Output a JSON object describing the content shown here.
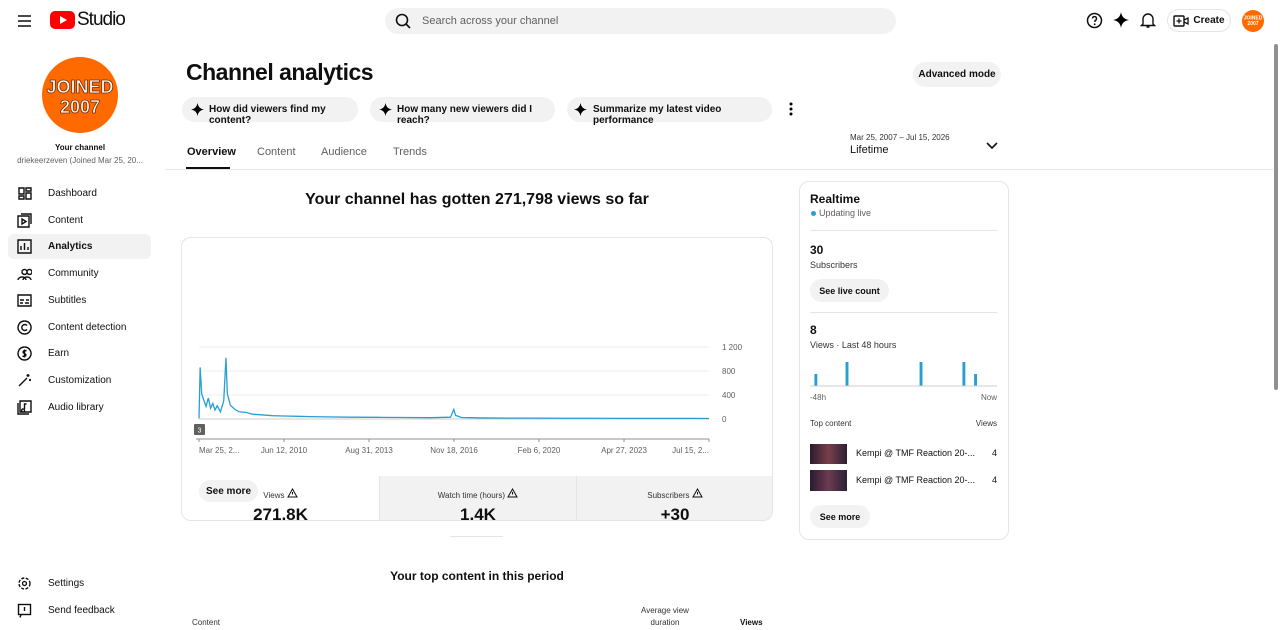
{
  "header": {
    "logo": "Studio",
    "search_placeholder": "Search across your channel",
    "create": "Create",
    "avatar": [
      "JOINED",
      "2007"
    ]
  },
  "sidebar": {
    "avatar": [
      "JOINED",
      "2007"
    ],
    "channel_label": "Your channel",
    "channel_name": "driekeerzeven (Joined Mar 25, 20...",
    "nav": [
      "Dashboard",
      "Content",
      "Analytics",
      "Community",
      "Subtitles",
      "Content detection",
      "Earn",
      "Customization",
      "Audio library"
    ],
    "active": 2,
    "footer": [
      "Settings",
      "Send feedback"
    ]
  },
  "page": {
    "title": "Channel analytics",
    "advanced": "Advanced mode",
    "prompts": [
      "How did viewers find my content?",
      "How many new viewers did I reach?",
      "Summarize my latest video performance"
    ],
    "tabs": [
      "Overview",
      "Content",
      "Audience",
      "Trends"
    ],
    "date_range": "Mar 25, 2007 – Jul 15, 2026",
    "period": "Lifetime"
  },
  "summary": "Your channel has gotten 271,798 views so far",
  "metrics": [
    {
      "label": "Views",
      "value": "271,8K"
    },
    {
      "label": "Watch time (hours)",
      "value": "1,4K"
    },
    {
      "label": "Subscribers",
      "value": "+30"
    }
  ],
  "views_chart": {
    "type": "line",
    "color": "#289ed3",
    "marker": "3",
    "x": [
      "2007-03-25",
      "2007-04-10",
      "2007-05-01",
      "2007-06-01",
      "2007-07-01",
      "2007-08-01",
      "2007-09-01",
      "2007-10-01",
      "2007-11-01",
      "2007-12-01",
      "2008-01-15",
      "2008-03-01",
      "2008-04-01",
      "2008-04-20",
      "2008-06-01",
      "2008-08-01",
      "2008-10-01",
      "2009-01-01",
      "2009-04-01",
      "2009-08-01",
      "2010-01-01",
      "2010-06-01",
      "2011-01-01",
      "2011-06-01",
      "2012-01-01",
      "2013-01-01",
      "2014-01-01",
      "2015-01-01",
      "2016-01-01",
      "2016-10-01",
      "2016-11-15",
      "2016-12-10",
      "2017-03-01",
      "2018-01-01",
      "2019-01-01",
      "2020-01-01",
      "2021-01-01",
      "2022-01-01",
      "2023-01-01",
      "2024-01-01",
      "2025-01-01",
      "2026-01-01",
      "2026-07-15"
    ],
    "values": [
      10,
      860,
      420,
      310,
      210,
      350,
      180,
      260,
      150,
      220,
      120,
      300,
      1020,
      420,
      230,
      160,
      120,
      110,
      80,
      70,
      55,
      50,
      45,
      40,
      35,
      30,
      28,
      25,
      22,
      30,
      160,
      60,
      25,
      18,
      15,
      14,
      12,
      12,
      10,
      10,
      10,
      10,
      8
    ],
    "xlim": [
      "2007-03-25",
      "2026-07-15"
    ],
    "xticks": [
      {
        "value": "2007-03-25",
        "label": "Mar 25, 2..."
      },
      {
        "value": "2010-06-12",
        "label": "Jun 12, 2010"
      },
      {
        "value": "2013-08-31",
        "label": "Aug 31, 2013"
      },
      {
        "value": "2016-11-18",
        "label": "Nov 18, 2016"
      },
      {
        "value": "2020-02-06",
        "label": "Feb 6, 2020"
      },
      {
        "value": "2023-04-27",
        "label": "Apr 27, 2023"
      },
      {
        "value": "2026-07-15",
        "label": "Jul 15, 2..."
      }
    ],
    "ylim": [
      0,
      1200
    ],
    "yticks": [
      0,
      400,
      800,
      {
        "value": 1200,
        "label": "1 200"
      }
    ],
    "grid": true
  },
  "see_more": "See more",
  "realtime": {
    "title": "Realtime",
    "status": "Updating live",
    "subscribers": "30",
    "subscribers_label": "Subscribers",
    "live_button": "See live count",
    "views": "8",
    "views_label": "Views · Last 48 hours",
    "chart": {
      "type": "bar",
      "color": "#289ed3",
      "ylim": [
        0,
        2
      ],
      "values": [
        0,
        1,
        0,
        0,
        0,
        0,
        0,
        0,
        0,
        2,
        0,
        0,
        0,
        0,
        0,
        0,
        0,
        0,
        0,
        0,
        0,
        0,
        0,
        0,
        0,
        0,
        0,
        0,
        2,
        0,
        0,
        0,
        0,
        0,
        0,
        0,
        0,
        0,
        0,
        2,
        0,
        0,
        1,
        0,
        0,
        0,
        0,
        0
      ],
      "x_labels": [
        "-48h",
        "Now"
      ]
    },
    "top_title": "Top content",
    "top_views": "Views",
    "items": [
      {
        "title": "Kempi @ TMF Reaction 20-...",
        "views": "4"
      },
      {
        "title": "Kempi @ TMF Reaction 20-...",
        "views": "4"
      }
    ],
    "see_more": "See more"
  },
  "top_content": {
    "title": "Your top content in this period",
    "columns": [
      "Content",
      "Average view duration",
      "Views"
    ]
  }
}
